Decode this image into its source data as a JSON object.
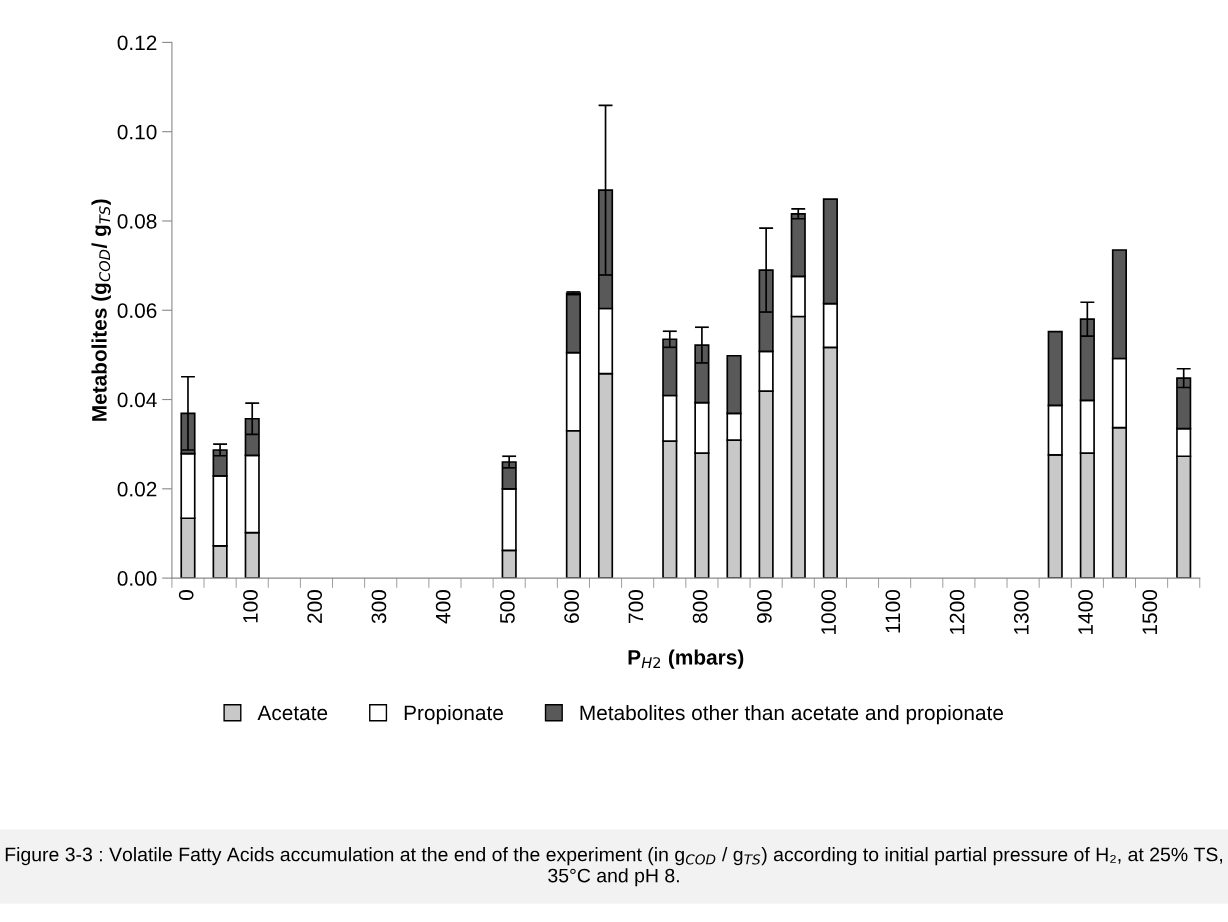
{
  "chart_data": {
    "type": "bar",
    "stacked": true,
    "categories": [
      "0",
      null,
      "100",
      null,
      "200",
      null,
      "300",
      null,
      "400",
      null,
      "500",
      null,
      "600",
      null,
      "700",
      null,
      "800",
      null,
      "900",
      null,
      "1000",
      null,
      "1100",
      null,
      "1200",
      null,
      "1300",
      null,
      "1400",
      null,
      "1500",
      null
    ],
    "series": [
      {
        "name": "Acetate",
        "color": "#c8c8c8",
        "values": [
          0.0134,
          0.0072,
          0.0102,
          null,
          null,
          null,
          null,
          null,
          null,
          null,
          0.0062,
          null,
          0.033,
          0.0458,
          null,
          0.0307,
          0.028,
          0.0309,
          0.0419,
          0.0586,
          0.0517,
          null,
          null,
          null,
          null,
          null,
          null,
          0.0276,
          0.028,
          0.0337,
          null,
          0.0273
        ]
      },
      {
        "name": "Propionate",
        "color": "#ffffff",
        "values": [
          0.0145,
          0.0157,
          0.0173,
          null,
          null,
          null,
          null,
          null,
          null,
          null,
          0.0138,
          null,
          0.0175,
          0.0146,
          null,
          0.0102,
          0.0113,
          0.006,
          0.0089,
          0.009,
          0.0098,
          null,
          null,
          null,
          null,
          null,
          null,
          0.0111,
          0.0118,
          0.0155,
          null,
          0.0062
        ]
      },
      {
        "name": "Metabolites other than acetate and propionate",
        "color": "#595959",
        "values": [
          0.009,
          0.0058,
          0.0082,
          null,
          null,
          null,
          null,
          null,
          null,
          null,
          0.006,
          null,
          0.0133,
          0.0265,
          null,
          0.0126,
          0.0129,
          0.0129,
          0.0182,
          0.014,
          0.0234,
          null,
          null,
          null,
          null,
          null,
          null,
          0.0165,
          0.0182,
          0.0243,
          null,
          0.0113
        ],
        "errors": [
          0.0082,
          0.0013,
          0.0035,
          null,
          null,
          null,
          null,
          null,
          null,
          null,
          0.0013,
          null,
          0.0003,
          0.019,
          null,
          0.0018,
          0.004,
          null,
          0.0094,
          0.0011,
          null,
          null,
          null,
          null,
          null,
          null,
          null,
          null,
          0.0038,
          null,
          null,
          0.0021
        ]
      }
    ],
    "ylim": [
      0,
      0.12
    ],
    "yticks": [
      {
        "value": 0,
        "label": "0.00"
      },
      {
        "value": 0.02,
        "label": "0.02"
      },
      {
        "value": 0.04,
        "label": "0.04"
      },
      {
        "value": 0.06,
        "label": "0.06"
      },
      {
        "value": 0.08,
        "label": "0.08"
      },
      {
        "value": 0.1,
        "label": "0.10"
      },
      {
        "value": 0.12,
        "label": "0.12"
      }
    ],
    "xlabel": "P$_{H2}$ (mbars)",
    "ylabel": "Metabolites (g$_{COD}$/ g$_{TS}$)",
    "legend": "bottom",
    "grid": false,
    "annotations": [
      "Figure 3-3 : Volatile Fatty Acids accumulation at the end of the experiment (in g$_{COD}$ / g$_{TS}$) according to initial partial pressure of H₂, at 25% TS, 35°C and pH 8."
    ]
  }
}
